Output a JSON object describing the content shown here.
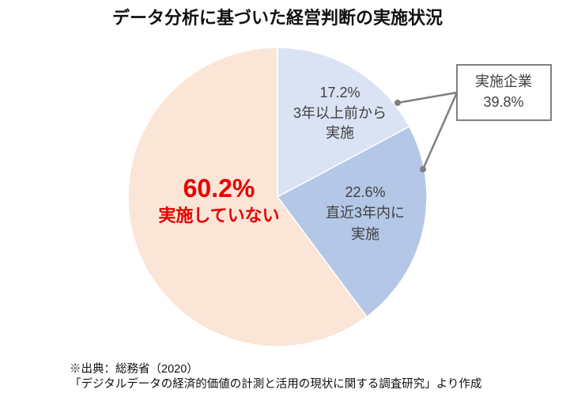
{
  "chart_data": {
    "type": "pie",
    "title": "データ分析に基づいた経営判断の実施状況",
    "slices": [
      {
        "value": 17.2,
        "value_label": "17.2%",
        "label_lines": [
          "3年以上前から",
          "実施"
        ],
        "color": "#DAE3F3",
        "text_color": "#404040"
      },
      {
        "value": 22.6,
        "value_label": "22.6%",
        "label_lines": [
          "直近3年内に",
          "実施"
        ],
        "color": "#B4C7E7",
        "text_color": "#404040"
      },
      {
        "value": 60.2,
        "value_label": "60.2%",
        "label_lines": [
          "実施していない"
        ],
        "color": "#FBE5D6",
        "text_color": "#E60000"
      }
    ],
    "annotation": {
      "label": "実施企業",
      "value_label": "39.8%",
      "line_color": "#7F7F7F"
    }
  },
  "source": {
    "line1": "※出典：総務省（2020）",
    "line2": "「デジタルデータの経済的価値の計測と活用の現状に関する調査研究」より作成"
  }
}
